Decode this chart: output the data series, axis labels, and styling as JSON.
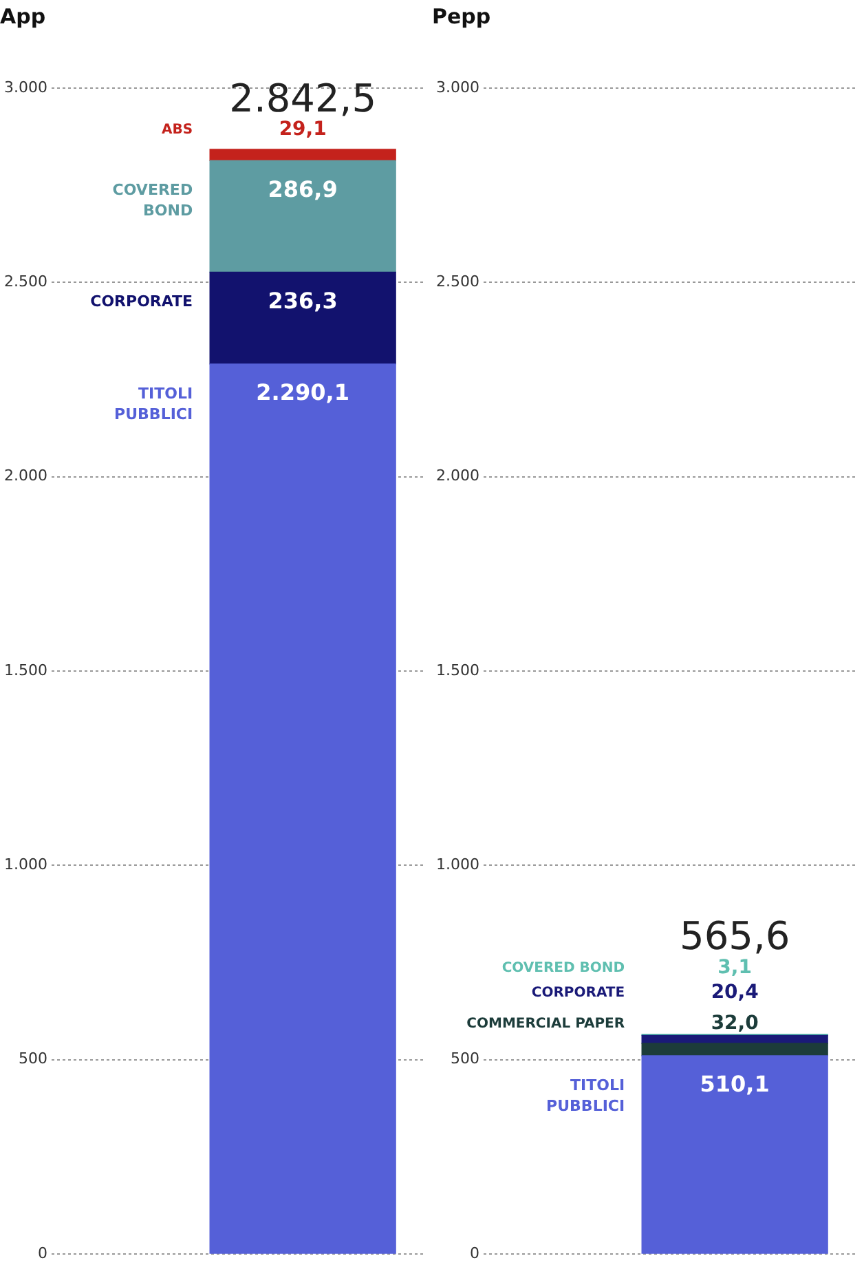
{
  "chart_data": [
    {
      "type": "bar",
      "title": "App",
      "stacked": true,
      "categories": [
        null
      ],
      "ylim": [
        0,
        3000
      ],
      "yticks": [
        {
          "value": 0,
          "label": "0"
        },
        {
          "value": 500,
          "label": "500"
        },
        {
          "value": 1000,
          "label": "1.000"
        },
        {
          "value": 1500,
          "label": "1.500"
        },
        {
          "value": 2000,
          "label": "2.000"
        },
        {
          "value": 2500,
          "label": "2.500"
        },
        {
          "value": 3000,
          "label": "3.000"
        }
      ],
      "grid": "y",
      "legend": false,
      "totals": [
        "2.842,5"
      ],
      "series": [
        {
          "name": "TITOLI PUBBLICI",
          "color": "#5560d8",
          "values": [
            2290.1
          ],
          "value_labels": [
            "2.290,1"
          ]
        },
        {
          "name": "CORPORATE",
          "color": "#12126e",
          "values": [
            236.3
          ],
          "value_labels": [
            "236,3"
          ]
        },
        {
          "name": "COVERED BOND",
          "color": "#5e9ca2",
          "values": [
            286.9
          ],
          "value_labels": [
            "286,9"
          ]
        },
        {
          "name": "ABS",
          "color": "#c4221c",
          "values": [
            29.1
          ],
          "value_labels": [
            "29,1"
          ]
        }
      ]
    },
    {
      "type": "bar",
      "title": "Pepp",
      "stacked": true,
      "categories": [
        null
      ],
      "ylim": [
        0,
        3000
      ],
      "yticks": [
        0,
        500,
        {
          "value": 1000,
          "label": "1.000"
        },
        {
          "value": 1500,
          "label": "1.500"
        },
        {
          "value": 2000,
          "label": "2.000"
        },
        {
          "value": 2500,
          "label": "2.500"
        },
        {
          "value": 3000,
          "label": "3.000"
        }
      ],
      "grid": "y",
      "legend": false,
      "totals": [
        "565,6"
      ],
      "series": [
        {
          "name": "TITOLI PUBBLICI",
          "color": "#5560d8",
          "values": [
            510.1
          ],
          "value_labels": [
            "510,1"
          ]
        },
        {
          "name": "COMMERCIAL PAPER",
          "color": "#1c3c3a",
          "values": [
            32.0
          ],
          "value_labels": [
            "32,0"
          ]
        },
        {
          "name": "CORPORATE",
          "color": "#1a1a78",
          "values": [
            20.4
          ],
          "value_labels": [
            "20,4"
          ]
        },
        {
          "name": "COVERED BOND",
          "color": "#5fbfb0",
          "values": [
            3.1
          ],
          "value_labels": [
            "3,1"
          ]
        }
      ]
    }
  ]
}
